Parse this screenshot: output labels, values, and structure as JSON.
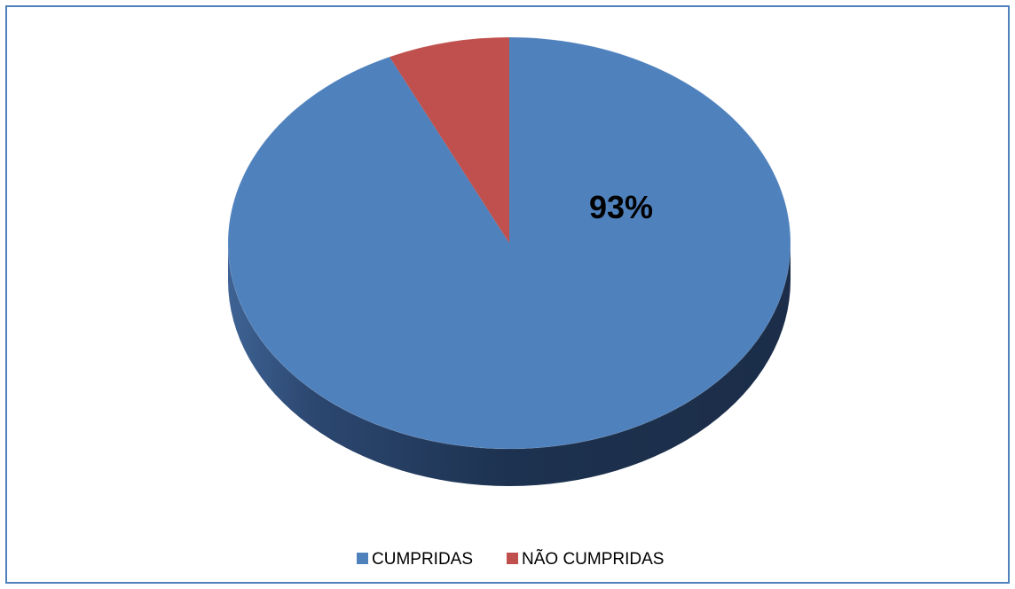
{
  "chart_data": {
    "type": "pie",
    "style": "3d",
    "title": "",
    "categories": [
      "CUMPRIDAS",
      "NÃO CUMPRIDAS"
    ],
    "values": [
      93,
      7
    ],
    "unit": "%",
    "colors": [
      "#4f81bd",
      "#c0504d"
    ],
    "data_labels": [
      {
        "category": "CUMPRIDAS",
        "text": "93%"
      }
    ],
    "legend": {
      "placement": "bottom",
      "entries": [
        "CUMPRIDAS",
        "NÃO CUMPRIDAS"
      ]
    }
  },
  "frame": {
    "border_color": "#4f81bd"
  }
}
